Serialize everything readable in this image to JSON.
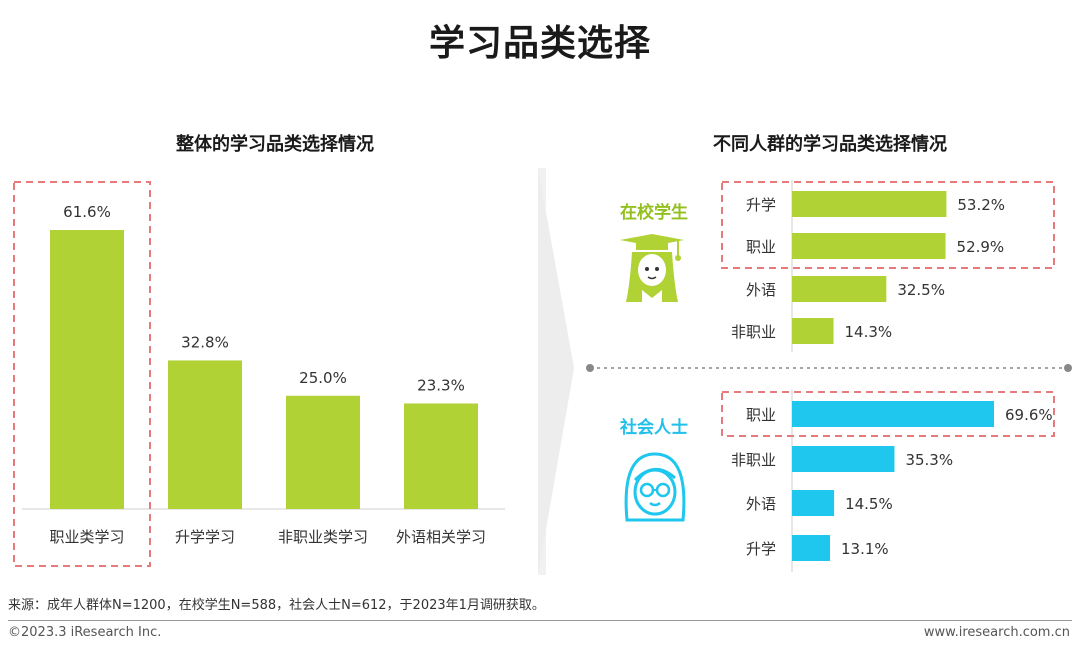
{
  "page": {
    "title": "学习品类选择",
    "source_note": "来源：成年人群体N=1200，在校学生N=588，社会人士N=612，于2023年1月调研获取。",
    "copyright": "©2023.3 iResearch Inc.",
    "website": "www.iresearch.com.cn"
  },
  "colors": {
    "green": "#b0d235",
    "blue": "#1fc6ee",
    "highlight_border": "#e77a7a",
    "green_label": "#93c01f",
    "blue_label": "#1fc0ea"
  },
  "chart_data": [
    {
      "type": "bar",
      "title": "整体的学习品类选择情况",
      "categories": [
        "职业类学习",
        "升学学习",
        "非职业类学习",
        "外语相关学习"
      ],
      "values": [
        61.6,
        32.8,
        25.0,
        23.3
      ],
      "value_labels": [
        "61.6%",
        "32.8%",
        "25.0%",
        "23.3%"
      ],
      "unit": "%",
      "highlighted": [
        "职业类学习"
      ],
      "ylim": [
        0,
        70
      ]
    },
    {
      "type": "bar",
      "orientation": "horizontal",
      "title": "不同人群的学习品类选择情况",
      "groups": [
        {
          "name": "在校学生",
          "icon": "graduate-student-icon",
          "categories": [
            "升学",
            "职业",
            "外语",
            "非职业"
          ],
          "values": [
            53.2,
            52.9,
            32.5,
            14.3
          ],
          "value_labels": [
            "53.2%",
            "52.9%",
            "32.5%",
            "14.3%"
          ],
          "highlighted": [
            "升学",
            "职业"
          ]
        },
        {
          "name": "社会人士",
          "icon": "professional-woman-icon",
          "categories": [
            "职业",
            "非职业",
            "外语",
            "升学"
          ],
          "values": [
            69.6,
            35.3,
            14.5,
            13.1
          ],
          "value_labels": [
            "69.6%",
            "35.3%",
            "14.5%",
            "13.1%"
          ],
          "highlighted": [
            "职业"
          ]
        }
      ],
      "xlim": [
        0,
        75
      ]
    }
  ]
}
